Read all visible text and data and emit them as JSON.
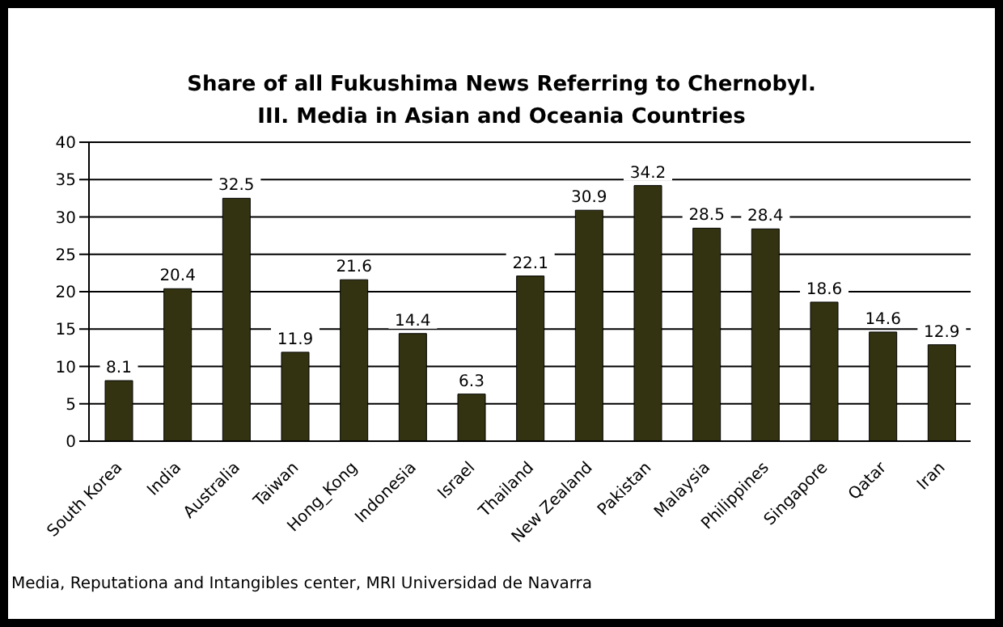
{
  "chart_data": {
    "type": "bar",
    "title": "Share of all Fukushima News Referring to Chernobyl.",
    "subtitle": "III. Media in Asian and Oceania Countries",
    "categories": [
      "South Korea",
      "India",
      "Australia",
      "Taiwan",
      "Hong_Kong",
      "Indonesia",
      "Israel",
      "Thailand",
      "New Zealand",
      "Pakistan",
      "Malaysia",
      "Philippines",
      "Singapore",
      "Qatar",
      "Iran"
    ],
    "values": [
      8.1,
      20.4,
      32.5,
      11.9,
      21.6,
      14.4,
      6.3,
      22.1,
      30.9,
      34.2,
      28.5,
      28.4,
      18.6,
      14.6,
      12.9
    ],
    "color": "#333311",
    "ylim": [
      0,
      40
    ],
    "yticks": [
      0,
      5,
      10,
      15,
      20,
      25,
      30,
      35,
      40
    ],
    "grid": "y",
    "data_labels": true,
    "annotations": [
      "Media, Reputationa and Intangibles center, MRI Universidad de Navarra"
    ]
  }
}
